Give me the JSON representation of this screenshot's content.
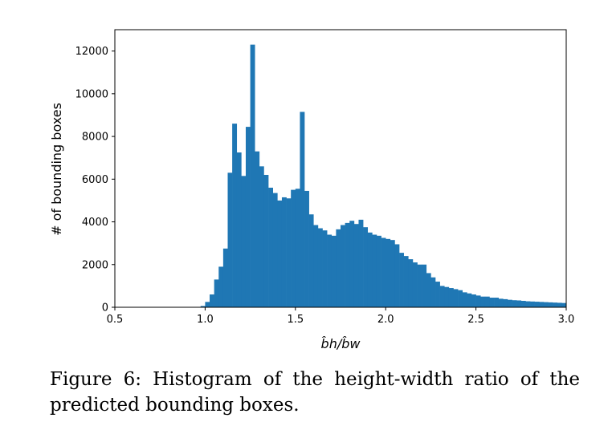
{
  "caption": "Figure 6: Histogram of the height-width ratio of the predicted bounding boxes.",
  "chart_data": {
    "type": "bar",
    "title": "",
    "xlabel": "b̂h/b̂w",
    "ylabel": "# of bounding boxes",
    "xlim": [
      0.5,
      3.0
    ],
    "ylim": [
      0,
      13000
    ],
    "xticks": [
      "0.5",
      "1.0",
      "1.5",
      "2.0",
      "2.5",
      "3.0"
    ],
    "yticks": [
      "0",
      "2000",
      "4000",
      "6000",
      "8000",
      "10000",
      "12000"
    ],
    "grid": false,
    "bar_color": "#1f77b4",
    "bin_start": 0.5,
    "bin_width": 0.025,
    "x": [
      0.5125,
      0.5375,
      0.5625,
      0.5875,
      0.6125,
      0.6375,
      0.6625,
      0.6875,
      0.7125,
      0.7375,
      0.7625,
      0.7875,
      0.8125,
      0.8375,
      0.8625,
      0.8875,
      0.9125,
      0.9375,
      0.9625,
      0.9875,
      1.0125,
      1.0375,
      1.0625,
      1.0875,
      1.1125,
      1.1375,
      1.1625,
      1.1875,
      1.2125,
      1.2375,
      1.2625,
      1.2875,
      1.3125,
      1.3375,
      1.3625,
      1.3875,
      1.4125,
      1.4375,
      1.4625,
      1.4875,
      1.5125,
      1.5375,
      1.5625,
      1.5875,
      1.6125,
      1.6375,
      1.6625,
      1.6875,
      1.7125,
      1.7375,
      1.7625,
      1.7875,
      1.8125,
      1.8375,
      1.8625,
      1.8875,
      1.9125,
      1.9375,
      1.9625,
      1.9875,
      2.0125,
      2.0375,
      2.0625,
      2.0875,
      2.1125,
      2.1375,
      2.1625,
      2.1875,
      2.2125,
      2.2375,
      2.2625,
      2.2875,
      2.3125,
      2.3375,
      2.3625,
      2.3875,
      2.4125,
      2.4375,
      2.4625,
      2.4875,
      2.5125,
      2.5375,
      2.5625,
      2.5875,
      2.6125,
      2.6375,
      2.6625,
      2.6875,
      2.7125,
      2.7375,
      2.7625,
      2.7875,
      2.8125,
      2.8375,
      2.8625,
      2.8875,
      2.9125,
      2.9375,
      2.9625,
      2.9875
    ],
    "values": [
      0,
      0,
      0,
      0,
      0,
      0,
      0,
      0,
      0,
      0,
      0,
      0,
      0,
      0,
      0,
      0,
      0,
      0,
      10,
      60,
      250,
      600,
      1300,
      1900,
      2750,
      6300,
      8600,
      7250,
      6150,
      8450,
      12300,
      7300,
      6600,
      6200,
      5600,
      5350,
      5000,
      5150,
      5100,
      5500,
      5550,
      9150,
      5450,
      4350,
      3850,
      3700,
      3600,
      3400,
      3350,
      3650,
      3850,
      3950,
      4050,
      3900,
      4100,
      3750,
      3500,
      3400,
      3350,
      3250,
      3200,
      3150,
      2950,
      2550,
      2400,
      2250,
      2100,
      2000,
      2000,
      1600,
      1400,
      1200,
      1000,
      950,
      900,
      850,
      800,
      700,
      650,
      600,
      550,
      500,
      500,
      450,
      450,
      400,
      380,
      350,
      330,
      320,
      300,
      280,
      270,
      260,
      250,
      240,
      230,
      220,
      210,
      200
    ]
  }
}
